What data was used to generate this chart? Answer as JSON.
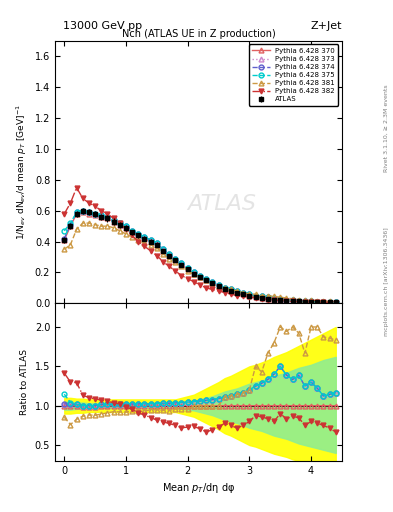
{
  "title_top": "13000 GeV pp",
  "title_right": "Z+Jet",
  "plot_title": "Nch (ATLAS UE in Z production)",
  "xlabel": "Mean $p_T$/dη dφ",
  "ylabel_main": "1/N$_{ev}$ dN$_{ev}$/d mean $p_T$ [GeV]$^{-1}$",
  "ylabel_ratio": "Ratio to ATLAS",
  "watermark": "ATLAS",
  "side_text_top": "Rivet 3.1.10, ≥ 2.3M events",
  "side_text_bottom": "mcplots.cern.ch [arXiv:1306.3436]",
  "atlas_data_x": [
    0.0,
    0.1,
    0.2,
    0.3,
    0.4,
    0.5,
    0.6,
    0.7,
    0.8,
    0.9,
    1.0,
    1.1,
    1.2,
    1.3,
    1.4,
    1.5,
    1.6,
    1.7,
    1.8,
    1.9,
    2.0,
    2.1,
    2.2,
    2.3,
    2.4,
    2.5,
    2.6,
    2.7,
    2.8,
    2.9,
    3.0,
    3.1,
    3.2,
    3.3,
    3.4,
    3.5,
    3.6,
    3.7,
    3.8,
    3.9,
    4.0,
    4.1,
    4.2,
    4.3,
    4.4
  ],
  "atlas_data_y": [
    0.41,
    0.5,
    0.58,
    0.6,
    0.59,
    0.58,
    0.56,
    0.55,
    0.53,
    0.51,
    0.49,
    0.46,
    0.44,
    0.42,
    0.4,
    0.38,
    0.34,
    0.31,
    0.28,
    0.25,
    0.22,
    0.19,
    0.17,
    0.15,
    0.13,
    0.11,
    0.09,
    0.08,
    0.07,
    0.06,
    0.05,
    0.04,
    0.035,
    0.03,
    0.025,
    0.02,
    0.018,
    0.015,
    0.013,
    0.012,
    0.01,
    0.009,
    0.008,
    0.007,
    0.006
  ],
  "atlas_err_y": [
    0.02,
    0.02,
    0.02,
    0.02,
    0.02,
    0.02,
    0.02,
    0.02,
    0.02,
    0.02,
    0.02,
    0.015,
    0.015,
    0.015,
    0.015,
    0.015,
    0.01,
    0.01,
    0.01,
    0.01,
    0.008,
    0.007,
    0.006,
    0.005,
    0.005,
    0.004,
    0.003,
    0.003,
    0.002,
    0.002,
    0.002,
    0.002,
    0.002,
    0.002,
    0.002,
    0.002,
    0.002,
    0.002,
    0.002,
    0.002,
    0.002,
    0.002,
    0.002,
    0.002,
    0.002
  ],
  "py370_x": [
    0.0,
    0.1,
    0.2,
    0.3,
    0.4,
    0.5,
    0.6,
    0.7,
    0.8,
    0.9,
    1.0,
    1.1,
    1.2,
    1.3,
    1.4,
    1.5,
    1.6,
    1.7,
    1.8,
    1.9,
    2.0,
    2.1,
    2.2,
    2.3,
    2.4,
    2.5,
    2.6,
    2.7,
    2.8,
    2.9,
    3.0,
    3.1,
    3.2,
    3.3,
    3.4,
    3.5,
    3.6,
    3.7,
    3.8,
    3.9,
    4.0,
    4.1,
    4.2,
    4.3,
    4.4
  ],
  "py370_y": [
    0.41,
    0.5,
    0.58,
    0.59,
    0.58,
    0.57,
    0.56,
    0.55,
    0.53,
    0.51,
    0.49,
    0.46,
    0.44,
    0.42,
    0.4,
    0.38,
    0.34,
    0.31,
    0.28,
    0.25,
    0.22,
    0.19,
    0.17,
    0.15,
    0.13,
    0.11,
    0.09,
    0.08,
    0.07,
    0.06,
    0.05,
    0.04,
    0.035,
    0.03,
    0.025,
    0.02,
    0.018,
    0.015,
    0.013,
    0.012,
    0.01,
    0.009,
    0.008,
    0.007,
    0.006
  ],
  "py373_x": [
    0.0,
    0.1,
    0.2,
    0.3,
    0.4,
    0.5,
    0.6,
    0.7,
    0.8,
    0.9,
    1.0,
    1.1,
    1.2,
    1.3,
    1.4,
    1.5,
    1.6,
    1.7,
    1.8,
    1.9,
    2.0,
    2.1,
    2.2,
    2.3,
    2.4,
    2.5,
    2.6,
    2.7,
    2.8,
    2.9,
    3.0,
    3.1,
    3.2,
    3.3,
    3.4,
    3.5,
    3.6,
    3.7,
    3.8,
    3.9,
    4.0,
    4.1,
    4.2,
    4.3,
    4.4
  ],
  "py373_y": [
    0.42,
    0.51,
    0.59,
    0.6,
    0.59,
    0.58,
    0.57,
    0.56,
    0.54,
    0.52,
    0.5,
    0.47,
    0.45,
    0.43,
    0.41,
    0.39,
    0.35,
    0.32,
    0.29,
    0.26,
    0.23,
    0.2,
    0.18,
    0.16,
    0.14,
    0.12,
    0.1,
    0.09,
    0.08,
    0.07,
    0.06,
    0.05,
    0.045,
    0.04,
    0.035,
    0.03,
    0.025,
    0.02,
    0.018,
    0.015,
    0.013,
    0.011,
    0.009,
    0.008,
    0.007
  ],
  "py374_x": [
    0.0,
    0.1,
    0.2,
    0.3,
    0.4,
    0.5,
    0.6,
    0.7,
    0.8,
    0.9,
    1.0,
    1.1,
    1.2,
    1.3,
    1.4,
    1.5,
    1.6,
    1.7,
    1.8,
    1.9,
    2.0,
    2.1,
    2.2,
    2.3,
    2.4,
    2.5,
    2.6,
    2.7,
    2.8,
    2.9,
    3.0,
    3.1,
    3.2,
    3.3,
    3.4,
    3.5,
    3.6,
    3.7,
    3.8,
    3.9,
    4.0,
    4.1,
    4.2,
    4.3,
    4.4
  ],
  "py374_y": [
    0.42,
    0.51,
    0.59,
    0.6,
    0.59,
    0.58,
    0.57,
    0.56,
    0.54,
    0.52,
    0.5,
    0.47,
    0.45,
    0.43,
    0.41,
    0.39,
    0.35,
    0.32,
    0.29,
    0.26,
    0.23,
    0.2,
    0.18,
    0.16,
    0.14,
    0.12,
    0.1,
    0.09,
    0.08,
    0.07,
    0.06,
    0.05,
    0.045,
    0.04,
    0.035,
    0.03,
    0.025,
    0.02,
    0.018,
    0.015,
    0.013,
    0.011,
    0.009,
    0.008,
    0.007
  ],
  "py375_x": [
    0.0,
    0.1,
    0.2,
    0.3,
    0.4,
    0.5,
    0.6,
    0.7,
    0.8,
    0.9,
    1.0,
    1.1,
    1.2,
    1.3,
    1.4,
    1.5,
    1.6,
    1.7,
    1.8,
    1.9,
    2.0,
    2.1,
    2.2,
    2.3,
    2.4,
    2.5,
    2.6,
    2.7,
    2.8,
    2.9,
    3.0,
    3.1,
    3.2,
    3.3,
    3.4,
    3.5,
    3.6,
    3.7,
    3.8,
    3.9,
    4.0,
    4.1,
    4.2,
    4.3,
    4.4
  ],
  "py375_y": [
    0.47,
    0.52,
    0.59,
    0.6,
    0.59,
    0.58,
    0.57,
    0.56,
    0.54,
    0.52,
    0.5,
    0.47,
    0.45,
    0.43,
    0.41,
    0.39,
    0.35,
    0.32,
    0.29,
    0.26,
    0.23,
    0.2,
    0.18,
    0.16,
    0.14,
    0.12,
    0.1,
    0.09,
    0.08,
    0.07,
    0.06,
    0.05,
    0.045,
    0.04,
    0.035,
    0.03,
    0.025,
    0.02,
    0.018,
    0.015,
    0.013,
    0.011,
    0.009,
    0.008,
    0.007
  ],
  "py381_x": [
    0.0,
    0.1,
    0.2,
    0.3,
    0.4,
    0.5,
    0.6,
    0.7,
    0.8,
    0.9,
    1.0,
    1.1,
    1.2,
    1.3,
    1.4,
    1.5,
    1.6,
    1.7,
    1.8,
    1.9,
    2.0,
    2.1,
    2.2,
    2.3,
    2.4,
    2.5,
    2.6,
    2.7,
    2.8,
    2.9,
    3.0,
    3.1,
    3.2,
    3.3,
    3.4,
    3.5,
    3.6,
    3.7,
    3.8,
    3.9,
    4.0,
    4.1,
    4.2,
    4.3,
    4.4
  ],
  "py381_y": [
    0.35,
    0.38,
    0.48,
    0.52,
    0.52,
    0.51,
    0.5,
    0.5,
    0.49,
    0.47,
    0.45,
    0.43,
    0.41,
    0.39,
    0.38,
    0.36,
    0.32,
    0.29,
    0.27,
    0.24,
    0.21,
    0.19,
    0.17,
    0.15,
    0.13,
    0.11,
    0.1,
    0.09,
    0.08,
    0.07,
    0.06,
    0.06,
    0.05,
    0.05,
    0.045,
    0.04,
    0.035,
    0.03,
    0.025,
    0.02,
    0.02,
    0.018,
    0.015,
    0.013,
    0.011
  ],
  "py382_x": [
    0.0,
    0.1,
    0.2,
    0.3,
    0.4,
    0.5,
    0.6,
    0.7,
    0.8,
    0.9,
    1.0,
    1.1,
    1.2,
    1.3,
    1.4,
    1.5,
    1.6,
    1.7,
    1.8,
    1.9,
    2.0,
    2.1,
    2.2,
    2.3,
    2.4,
    2.5,
    2.6,
    2.7,
    2.8,
    2.9,
    3.0,
    3.1,
    3.2,
    3.3,
    3.4,
    3.5,
    3.6,
    3.7,
    3.8,
    3.9,
    4.0,
    4.1,
    4.2,
    4.3,
    4.4
  ],
  "py382_y": [
    0.58,
    0.65,
    0.75,
    0.68,
    0.65,
    0.63,
    0.6,
    0.58,
    0.55,
    0.52,
    0.48,
    0.44,
    0.4,
    0.37,
    0.34,
    0.31,
    0.27,
    0.24,
    0.21,
    0.18,
    0.16,
    0.14,
    0.12,
    0.1,
    0.09,
    0.08,
    0.07,
    0.06,
    0.05,
    0.045,
    0.04,
    0.035,
    0.03,
    0.025,
    0.02,
    0.018,
    0.015,
    0.013,
    0.011,
    0.009,
    0.008,
    0.007,
    0.006,
    0.005,
    0.004
  ],
  "green_band_x": [
    0.0,
    0.1,
    0.2,
    0.3,
    0.4,
    0.5,
    0.6,
    0.7,
    0.8,
    0.9,
    1.0,
    1.1,
    1.2,
    1.3,
    1.4,
    1.5,
    1.6,
    1.7,
    1.8,
    1.9,
    2.0,
    2.1,
    2.2,
    2.3,
    2.4,
    2.5,
    2.6,
    2.7,
    2.8,
    2.9,
    3.0,
    3.1,
    3.2,
    3.3,
    3.4,
    3.5,
    3.6,
    3.7,
    3.8,
    3.9,
    4.0,
    4.1,
    4.2,
    4.3,
    4.4
  ],
  "green_band_lo": [
    0.95,
    0.95,
    0.96,
    0.96,
    0.97,
    0.97,
    0.97,
    0.97,
    0.97,
    0.97,
    0.97,
    0.97,
    0.97,
    0.97,
    0.97,
    0.97,
    0.97,
    0.97,
    0.97,
    0.96,
    0.95,
    0.94,
    0.92,
    0.9,
    0.88,
    0.85,
    0.82,
    0.8,
    0.78,
    0.75,
    0.72,
    0.7,
    0.68,
    0.65,
    0.62,
    0.6,
    0.58,
    0.55,
    0.52,
    0.5,
    0.48,
    0.46,
    0.44,
    0.42,
    0.4
  ],
  "green_band_hi": [
    1.05,
    1.05,
    1.04,
    1.04,
    1.03,
    1.03,
    1.03,
    1.03,
    1.03,
    1.03,
    1.03,
    1.03,
    1.03,
    1.03,
    1.03,
    1.03,
    1.03,
    1.03,
    1.03,
    1.04,
    1.05,
    1.06,
    1.08,
    1.1,
    1.12,
    1.15,
    1.18,
    1.2,
    1.22,
    1.25,
    1.28,
    1.3,
    1.32,
    1.35,
    1.38,
    1.4,
    1.42,
    1.45,
    1.48,
    1.5,
    1.52,
    1.55,
    1.58,
    1.6,
    1.62
  ],
  "yellow_band_lo": [
    0.9,
    0.9,
    0.91,
    0.91,
    0.92,
    0.92,
    0.92,
    0.92,
    0.92,
    0.92,
    0.92,
    0.92,
    0.92,
    0.92,
    0.92,
    0.92,
    0.92,
    0.92,
    0.92,
    0.9,
    0.88,
    0.86,
    0.82,
    0.78,
    0.74,
    0.7,
    0.65,
    0.62,
    0.58,
    0.54,
    0.5,
    0.48,
    0.45,
    0.42,
    0.39,
    0.37,
    0.35,
    0.32,
    0.3,
    0.28,
    0.26,
    0.24,
    0.22,
    0.2,
    0.18
  ],
  "yellow_band_hi": [
    1.1,
    1.1,
    1.09,
    1.09,
    1.08,
    1.08,
    1.08,
    1.08,
    1.08,
    1.08,
    1.08,
    1.08,
    1.08,
    1.08,
    1.08,
    1.08,
    1.08,
    1.08,
    1.08,
    1.1,
    1.12,
    1.14,
    1.18,
    1.22,
    1.26,
    1.3,
    1.35,
    1.38,
    1.42,
    1.46,
    1.5,
    1.52,
    1.55,
    1.58,
    1.62,
    1.65,
    1.68,
    1.72,
    1.76,
    1.8,
    1.84,
    1.88,
    1.92,
    1.96,
    2.0
  ],
  "color_370": "#e06060",
  "color_373": "#cc88cc",
  "color_374": "#6060cc",
  "color_375": "#00cccc",
  "color_381": "#cc9944",
  "color_382": "#cc3333",
  "main_ylim": [
    0.0,
    1.7
  ],
  "ratio_ylim": [
    0.3,
    2.3
  ],
  "xlim": [
    -0.15,
    4.5
  ]
}
